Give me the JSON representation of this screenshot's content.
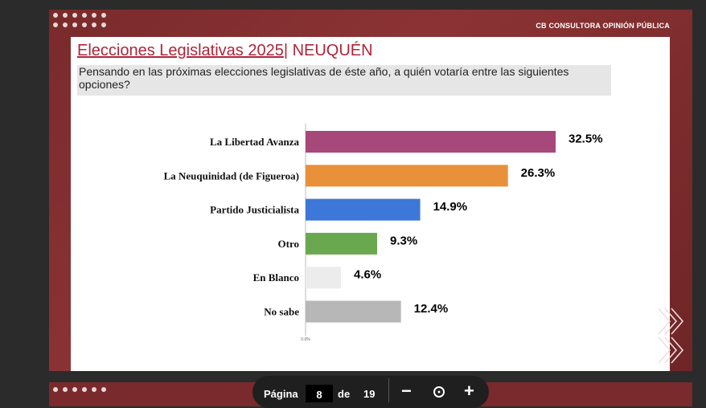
{
  "header": {
    "brand": "CB CONSULTORA OPINIÓN PÚBLICA",
    "title_underlined": "Elecciones Legislativas 2025",
    "title_rest": "| NEUQUÉN",
    "question": "Pensando en las próximas elecciones legislativas de éste año, a quién votaría entre las siguientes opciones?"
  },
  "chart_data": {
    "type": "bar",
    "orientation": "horizontal",
    "categories": [
      "La Libertad Avanza",
      "La Neuquinidad (de Figueroa)",
      "Partido Justicialista",
      "Otro",
      "En Blanco",
      "No sabe"
    ],
    "values": [
      32.5,
      26.3,
      14.9,
      9.3,
      4.6,
      12.4
    ],
    "value_labels": [
      "32.5%",
      "26.3%",
      "14.9%",
      "9.3%",
      "4.6%",
      "12.4%"
    ],
    "colors": [
      "#a6487a",
      "#e8903a",
      "#3d78d8",
      "#6aa84f",
      "#ececec",
      "#b7b7b7"
    ],
    "x_tick_label": "0.0%",
    "xlim": [
      0,
      32.5
    ],
    "grid": false,
    "legend": "none",
    "title": "",
    "xlabel": "",
    "ylabel": ""
  },
  "pager": {
    "label": "Página",
    "current": "8",
    "of_label": "de",
    "total": "19"
  },
  "colors": {
    "slide_bg": "#8b3334",
    "title": "#b0243a"
  }
}
